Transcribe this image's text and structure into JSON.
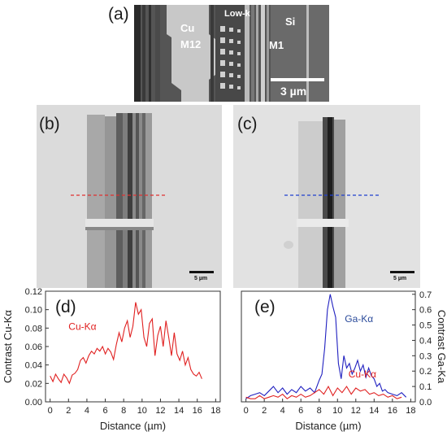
{
  "panels": {
    "a": {
      "label": "(a)",
      "cu": "Cu",
      "m12": "M12",
      "lowk": "Low-k",
      "si": "Si",
      "m1": "M1",
      "scalebar": "3 µm"
    },
    "b": {
      "label": "(b)",
      "scalebar": "5 µm",
      "line_color": "#e03030"
    },
    "c": {
      "label": "(c)",
      "scalebar": "5 µm",
      "line_color": "#2040d0"
    },
    "d": {
      "label": "(d)"
    },
    "e": {
      "label": "(e)"
    }
  },
  "chart_data": [
    {
      "type": "line",
      "panel": "d",
      "xlabel": "Distance (µm)",
      "ylabel": "Contrast Cu-Kα",
      "xlim": [
        -0.5,
        18.5
      ],
      "ylim": [
        0,
        0.12
      ],
      "xticks": [
        0,
        2,
        4,
        6,
        8,
        10,
        12,
        14,
        16,
        18
      ],
      "yticks": [
        0.0,
        0.02,
        0.04,
        0.06,
        0.08,
        0.1,
        0.12
      ],
      "series": [
        {
          "name": "Cu-Kα",
          "color": "#e02020",
          "x": [
            0,
            0.3,
            0.6,
            0.9,
            1.2,
            1.5,
            1.8,
            2.1,
            2.4,
            2.7,
            3.0,
            3.3,
            3.6,
            3.9,
            4.2,
            4.5,
            4.8,
            5.1,
            5.4,
            5.7,
            6.0,
            6.3,
            6.6,
            6.9,
            7.2,
            7.5,
            7.8,
            8.1,
            8.4,
            8.7,
            9.0,
            9.3,
            9.6,
            9.9,
            10.2,
            10.5,
            10.8,
            11.1,
            11.4,
            11.7,
            12.0,
            12.3,
            12.6,
            12.9,
            13.2,
            13.5,
            13.8,
            14.1,
            14.4,
            14.7,
            15.0,
            15.3,
            15.6,
            15.9,
            16.2,
            16.5
          ],
          "y": [
            0.028,
            0.022,
            0.03,
            0.025,
            0.021,
            0.03,
            0.026,
            0.02,
            0.029,
            0.031,
            0.035,
            0.045,
            0.048,
            0.042,
            0.05,
            0.055,
            0.052,
            0.058,
            0.055,
            0.06,
            0.052,
            0.058,
            0.054,
            0.046,
            0.062,
            0.075,
            0.065,
            0.08,
            0.088,
            0.07,
            0.082,
            0.108,
            0.095,
            0.1,
            0.07,
            0.06,
            0.085,
            0.09,
            0.05,
            0.072,
            0.082,
            0.06,
            0.088,
            0.07,
            0.05,
            0.075,
            0.052,
            0.045,
            0.055,
            0.04,
            0.048,
            0.035,
            0.03,
            0.028,
            0.032,
            0.025
          ]
        }
      ]
    },
    {
      "type": "line",
      "panel": "e",
      "xlabel": "Distance (µm)",
      "ylabel": "Contrast Ga-Ka",
      "xlim": [
        -0.5,
        18.5
      ],
      "ylim": [
        0,
        0.72
      ],
      "xticks": [
        0,
        2,
        4,
        6,
        8,
        10,
        12,
        14,
        16,
        18
      ],
      "yticks": [
        0,
        0.1,
        0.2,
        0.3,
        0.4,
        0.5,
        0.6,
        0.7
      ],
      "series": [
        {
          "name": "Ga-Kα",
          "color": "#2020c0",
          "x": [
            0,
            0.5,
            1.0,
            1.5,
            2.0,
            2.5,
            3.0,
            3.5,
            4.0,
            4.5,
            5.0,
            5.5,
            6.0,
            6.5,
            7.0,
            7.5,
            8.0,
            8.3,
            8.6,
            8.9,
            9.2,
            9.5,
            9.8,
            10.1,
            10.4,
            10.7,
            11.0,
            11.3,
            11.6,
            11.9,
            12.2,
            12.5,
            12.8,
            13.1,
            13.4,
            13.7,
            14.0,
            14.3,
            14.6,
            14.9,
            15.2,
            15.5,
            16.0,
            16.5,
            17.0,
            17.5
          ],
          "y": [
            0.02,
            0.04,
            0.05,
            0.06,
            0.04,
            0.07,
            0.1,
            0.06,
            0.09,
            0.05,
            0.08,
            0.06,
            0.1,
            0.07,
            0.09,
            0.06,
            0.14,
            0.18,
            0.35,
            0.6,
            0.7,
            0.62,
            0.55,
            0.25,
            0.15,
            0.3,
            0.22,
            0.25,
            0.18,
            0.22,
            0.27,
            0.2,
            0.24,
            0.16,
            0.22,
            0.17,
            0.15,
            0.1,
            0.12,
            0.07,
            0.08,
            0.06,
            0.05,
            0.04,
            0.06,
            0.03
          ]
        },
        {
          "name": "Cu-Kα",
          "color": "#e02020",
          "x": [
            0,
            0.5,
            1.0,
            1.5,
            2.0,
            2.5,
            3.0,
            3.5,
            4.0,
            4.5,
            5.0,
            5.5,
            6.0,
            6.5,
            7.0,
            7.5,
            8.0,
            8.5,
            9.0,
            9.5,
            10.0,
            10.5,
            11.0,
            11.5,
            12.0,
            12.5,
            13.0,
            13.5,
            14.0,
            14.5,
            15.0,
            15.5,
            16.0,
            16.5,
            17.0
          ],
          "y": [
            0.03,
            0.02,
            0.02,
            0.04,
            0.02,
            0.03,
            0.04,
            0.03,
            0.05,
            0.02,
            0.04,
            0.03,
            0.05,
            0.03,
            0.04,
            0.06,
            0.08,
            0.05,
            0.1,
            0.04,
            0.09,
            0.06,
            0.1,
            0.05,
            0.09,
            0.07,
            0.08,
            0.05,
            0.06,
            0.04,
            0.05,
            0.03,
            0.04,
            0.02,
            0.03
          ]
        }
      ],
      "annotations": [
        {
          "text": "Ga-Kα",
          "color": "#2a4a9a"
        },
        {
          "text": "Cu-Kα",
          "color": "#e02020"
        }
      ]
    }
  ]
}
